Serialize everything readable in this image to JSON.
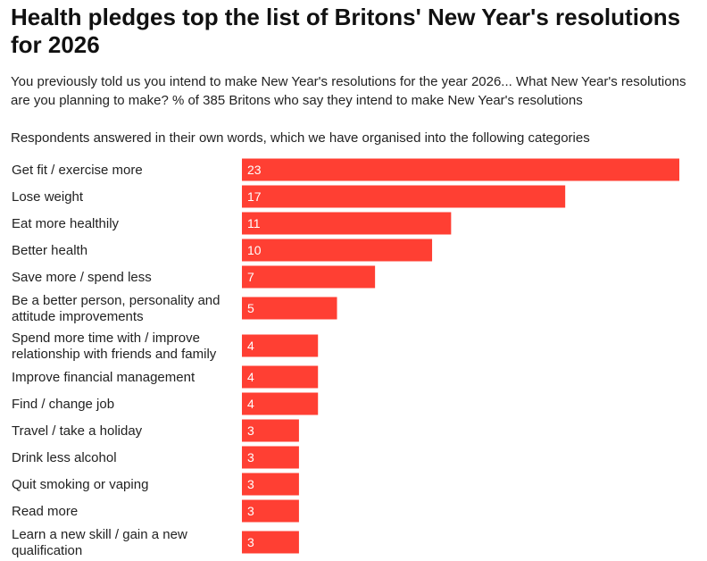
{
  "header": {
    "title": "Health pledges top the list of Britons' New Year's resolutions for 2026",
    "subtitle": "You previously told us you intend to make New Year's resolutions for the year 2026... What New Year's resolutions are you planning to make? % of 385 Britons who say they intend to make New Year's resolutions",
    "note": "Respondents answered in their own words, which we have organised into the following categories"
  },
  "chart_data": {
    "type": "bar",
    "orientation": "horizontal",
    "bar_color": "#ff3f33",
    "categories": [
      [
        "Get fit / exercise more"
      ],
      [
        "Lose weight"
      ],
      [
        "Eat more healthily"
      ],
      [
        "Better health"
      ],
      [
        "Save more / spend less"
      ],
      [
        "Be a better person, personality and",
        "attitude improvements"
      ],
      [
        "Spend more time with / improve",
        "relationship with friends and family"
      ],
      [
        "Improve financial management"
      ],
      [
        "Find / change job"
      ],
      [
        "Travel / take a holiday"
      ],
      [
        "Drink less alcohol"
      ],
      [
        "Quit smoking or vaping"
      ],
      [
        "Read more"
      ],
      [
        "Learn a new skill / gain a new",
        "qualification"
      ]
    ],
    "values": [
      23,
      17,
      11,
      10,
      7,
      5,
      4,
      4,
      4,
      3,
      3,
      3,
      3,
      3
    ],
    "grid": false,
    "legend": "none"
  }
}
